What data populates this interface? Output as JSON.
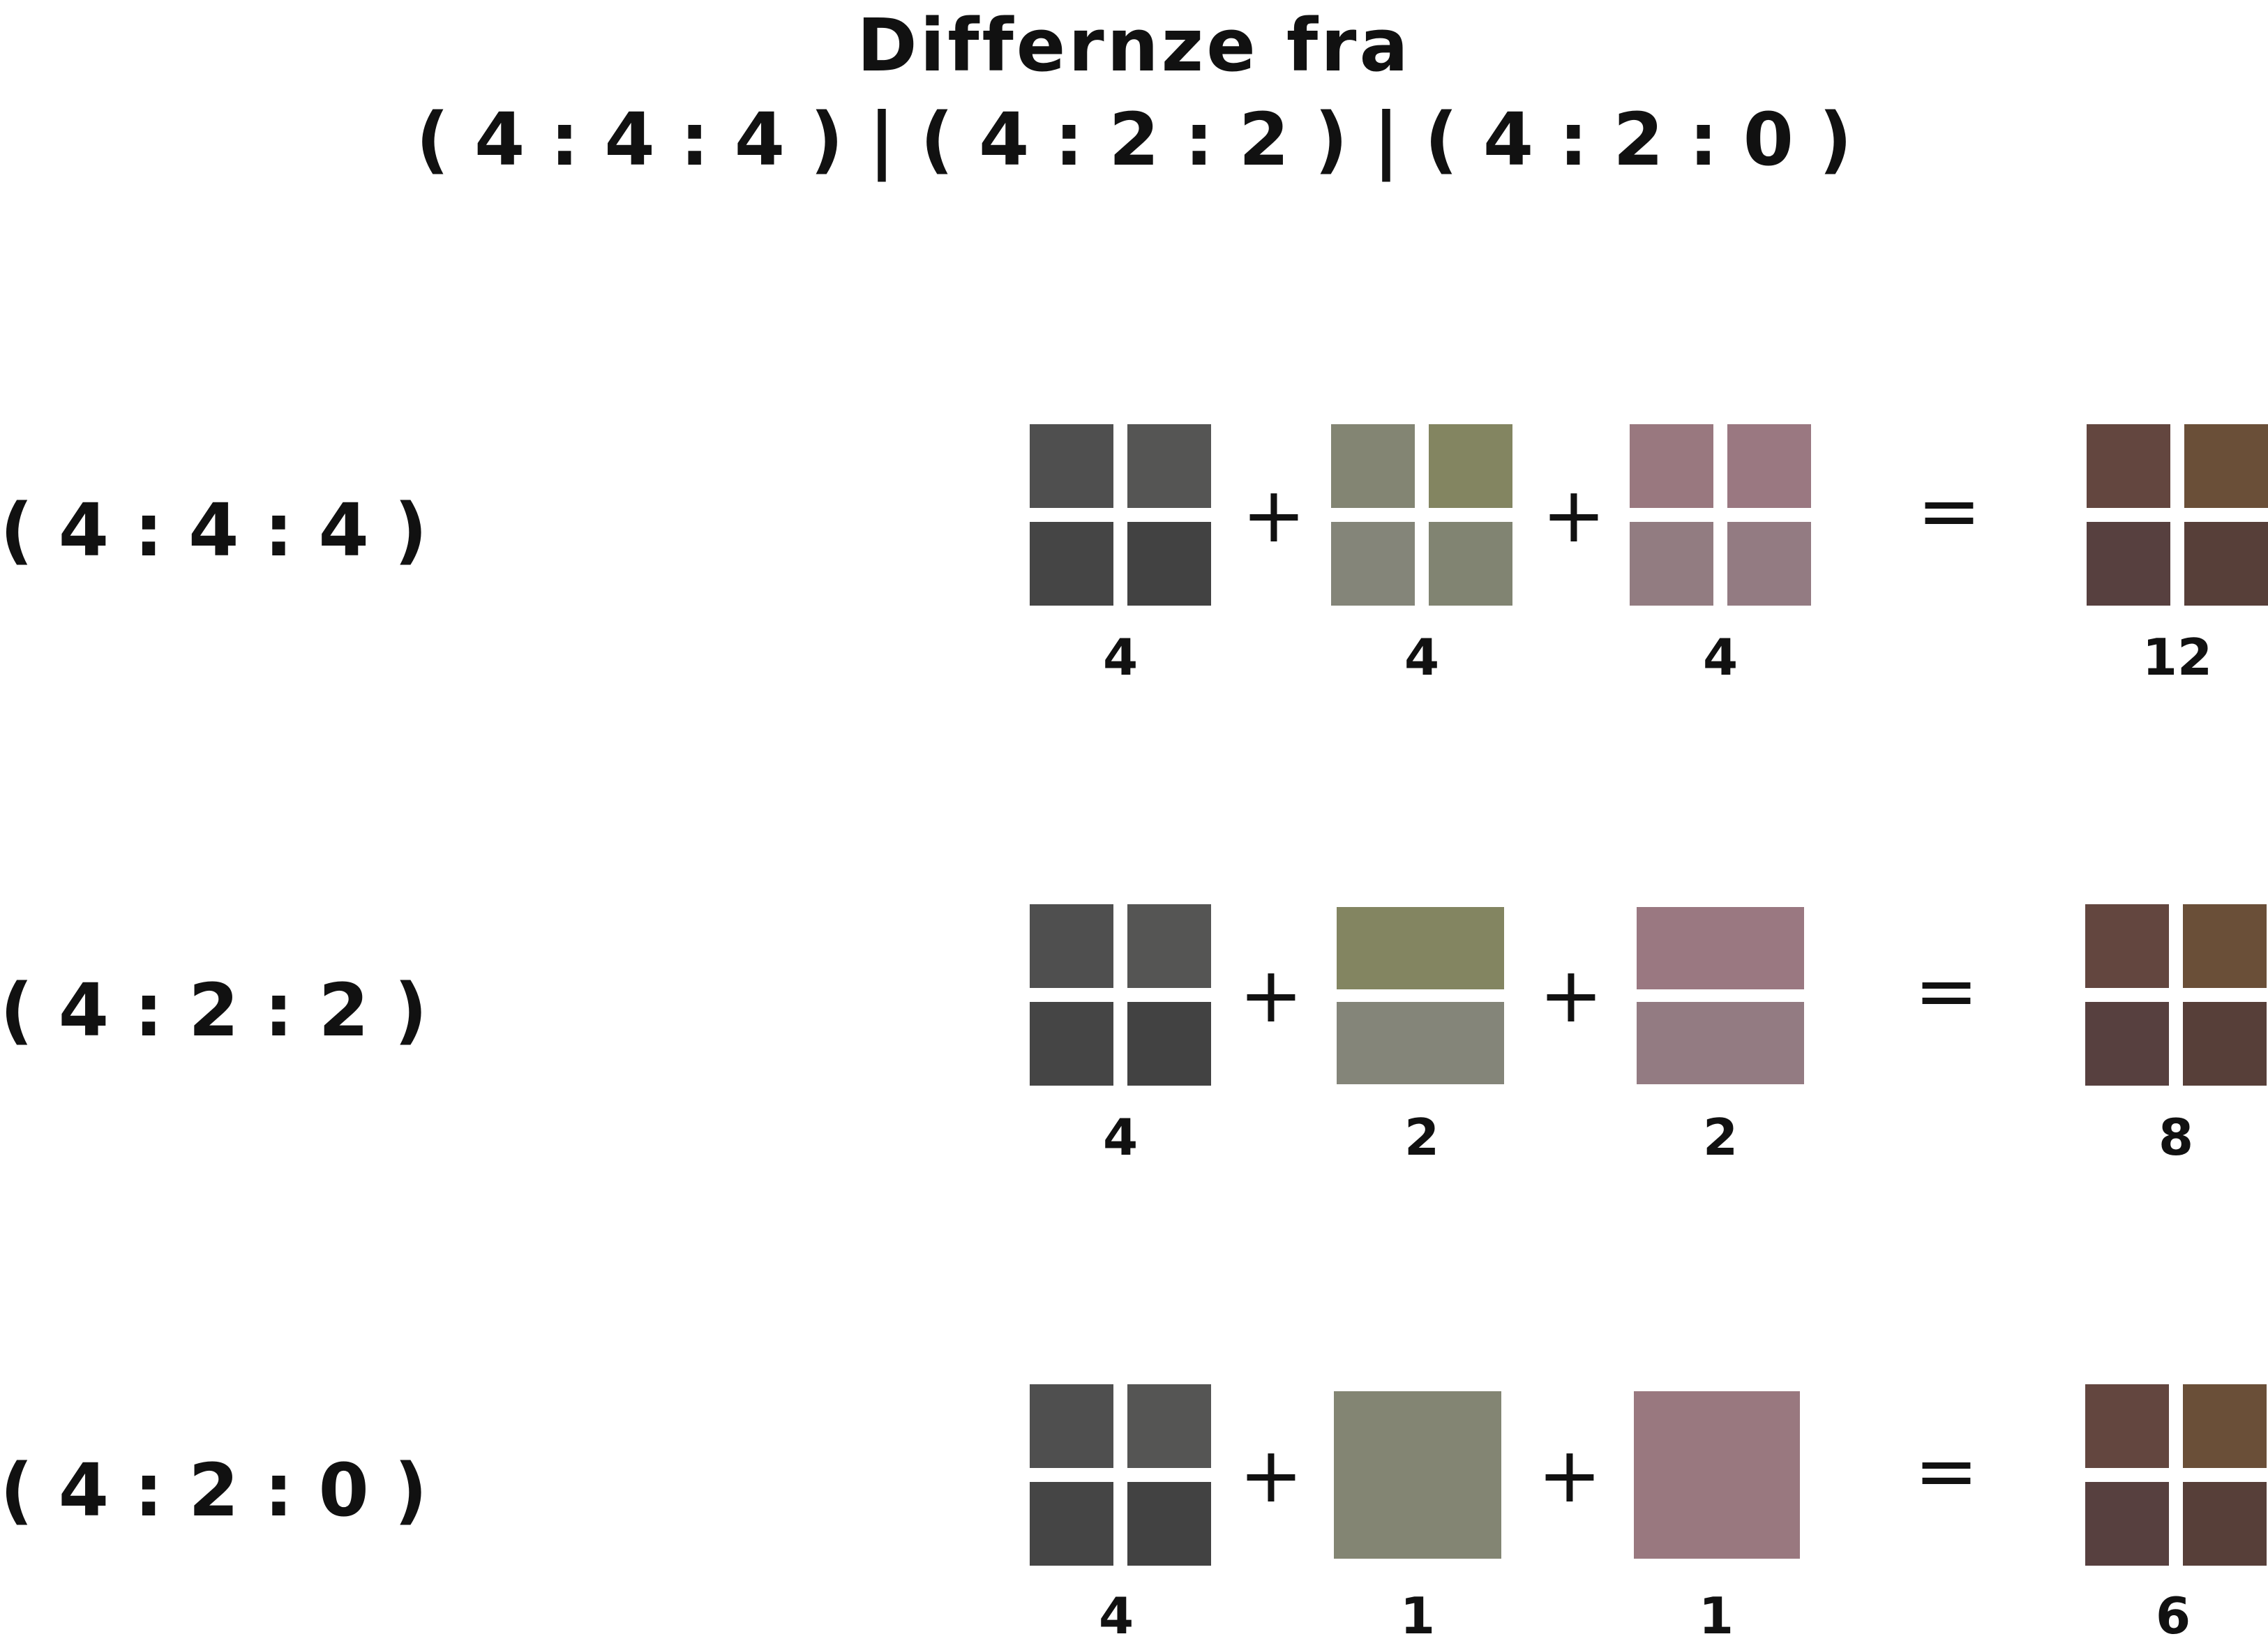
{
  "title": {
    "line1": "Differnze fra",
    "line2": "( 4 : 4 : 4 ) | ( 4 : 2 : 2 ) | ( 4 : 2 : 0 )"
  },
  "operators": {
    "plus": "+",
    "equals": "="
  },
  "colors": {
    "luma": [
      "#4f4f4f",
      "#555554",
      "#454545",
      "#424242"
    ],
    "cb": [
      "#838573",
      "#838561",
      "#848579",
      "#818472"
    ],
    "cr": [
      "#99787f",
      "#9a7881",
      "#927c81",
      "#937b82"
    ],
    "result": [
      "#63463f",
      "#6a4f38",
      "#57403f",
      "#573f39"
    ]
  },
  "rows": [
    {
      "label": "( 4 : 4 : 4 )",
      "luma": "4",
      "cb": "4",
      "cr": "4",
      "total": "12",
      "layout": "4-cell"
    },
    {
      "label": "( 4 : 2 : 2 )",
      "luma": "4",
      "cb": "2",
      "cr": "2",
      "total": "8",
      "layout": "2-row"
    },
    {
      "label": "( 4 : 2 : 0 )",
      "luma": "4",
      "cb": "1",
      "cr": "1",
      "total": "6",
      "layout": "1-block"
    }
  ]
}
